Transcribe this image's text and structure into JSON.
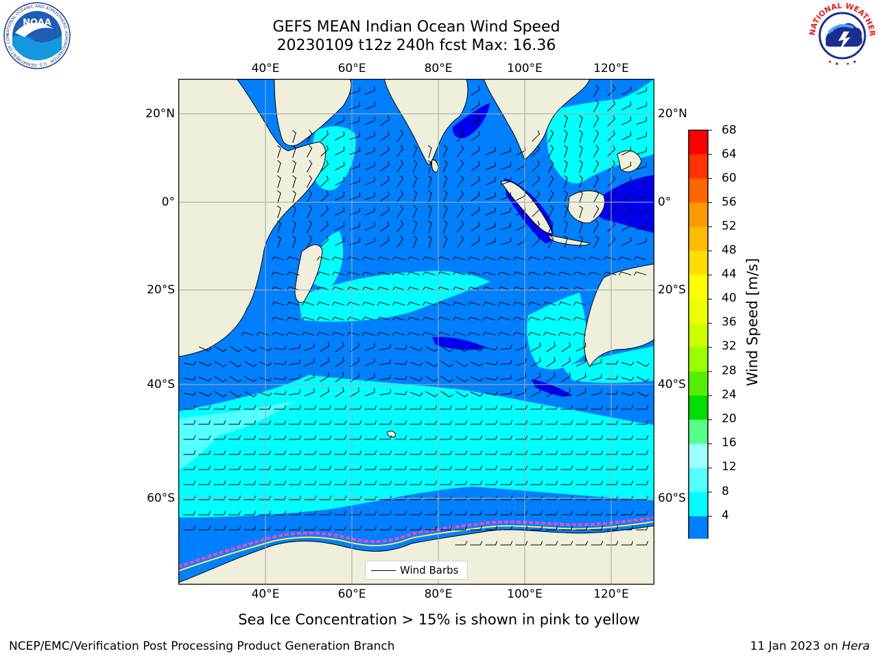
{
  "title": {
    "line1": "GEFS MEAN Indian Ocean Wind Speed",
    "line2": "20230109 t12z 240h fcst   Max: 16.36"
  },
  "map": {
    "lon_ticks": [
      "40°E",
      "60°E",
      "80°E",
      "100°E",
      "120°E"
    ],
    "lat_ticks": [
      "20°N",
      "0°",
      "20°S",
      "40°S",
      "60°S"
    ],
    "land_color": "#efefdc",
    "ocean_colors": [
      "#0000ee",
      "#0080ff",
      "#00ffff",
      "#a0ffff"
    ]
  },
  "legend": {
    "label": "Wind Barbs"
  },
  "colorbar": {
    "title": "Wind Speed [m/s]",
    "labels": [
      "68",
      "64",
      "60",
      "56",
      "52",
      "48",
      "44",
      "40",
      "36",
      "32",
      "28",
      "24",
      "20",
      "16",
      "12",
      "8",
      "4"
    ],
    "colors": [
      "#ff0000",
      "#ff3300",
      "#ff6600",
      "#ff9900",
      "#ffbb00",
      "#ffdd00",
      "#ffff00",
      "#eeff00",
      "#ccff00",
      "#99ff00",
      "#55ee00",
      "#00dd00",
      "#55ff88",
      "#a0ffff",
      "#55ffff",
      "#00ffff",
      "#0080ff"
    ],
    "extend_color": "#0000ff"
  },
  "subtitle": "Sea Ice Concentration > 15% is shown in pink to yellow",
  "footer": {
    "left": "NCEP/EMC/Verification Post Processing Product Generation Branch",
    "right_date": "11 Jan 2023 on ",
    "right_host": "Hera"
  },
  "logos": {
    "noaa": "NOAA",
    "noaa_ring": "NATIONAL OCEANIC AND ATMOSPHERIC ADMINISTRATION · U.S. DEPARTMENT OF COMMERCE",
    "nws_ring": "NATIONAL WEATHER SERVICE"
  }
}
